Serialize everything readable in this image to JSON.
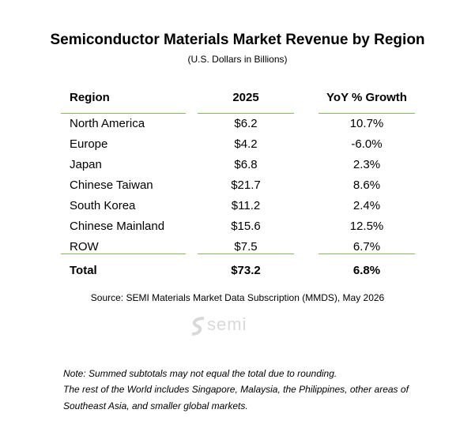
{
  "header": {
    "title": "Semiconductor Materials Market Revenue by Region",
    "subtitle": "(U.S. Dollars in Billions)"
  },
  "table": {
    "columns": [
      "Region",
      "2025",
      "YoY % Growth"
    ],
    "rows": [
      [
        "North America",
        "$6.2",
        "10.7%"
      ],
      [
        "Europe",
        "$4.2",
        "-6.0%"
      ],
      [
        "Japan",
        "$6.8",
        "2.3%"
      ],
      [
        "Chinese Taiwan",
        "$21.7",
        "8.6%"
      ],
      [
        "South Korea",
        "$11.2",
        "2.4%"
      ],
      [
        "Chinese Mainland",
        "$15.6",
        "12.5%"
      ],
      [
        "ROW",
        "$7.5",
        "6.7%"
      ]
    ],
    "total": [
      "Total",
      "$73.2",
      "6.8%"
    ]
  },
  "source": "Source: SEMI Materials Market Data Subscription (MMDS), May 2026",
  "logo": "semi",
  "notes": [
    "Note: Summed subtotals may not equal the total due to rounding.",
    "The rest of the World includes Singapore, Malaysia, the Philippines, other areas of",
    "Southeast Asia, and smaller global markets."
  ]
}
